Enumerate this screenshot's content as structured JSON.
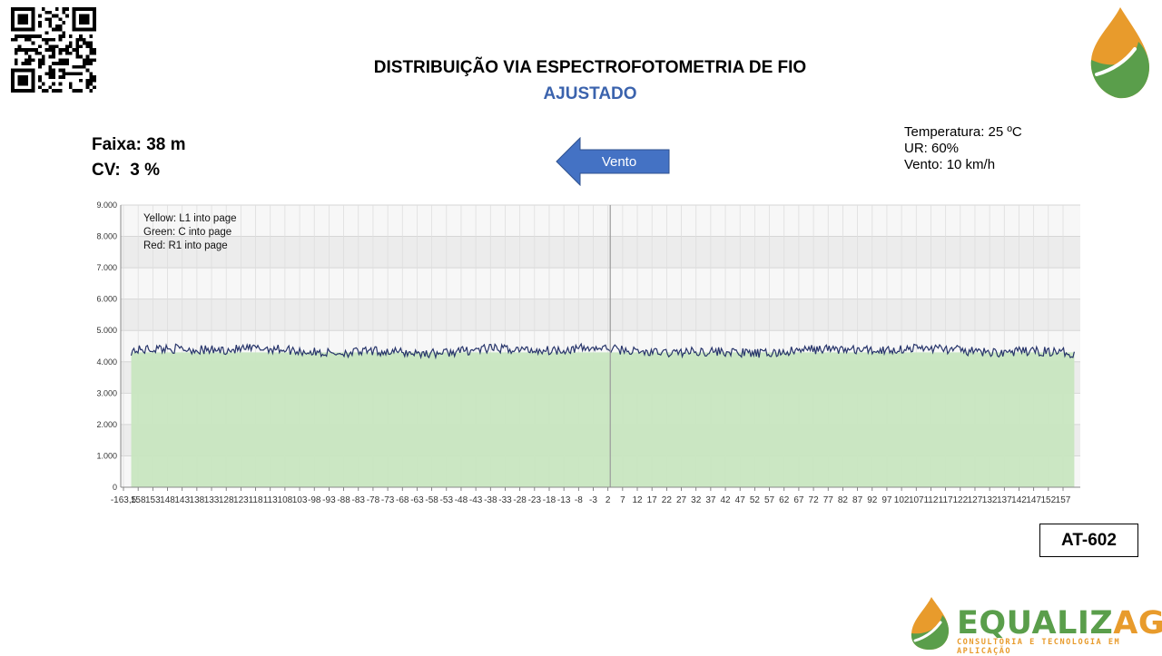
{
  "header": {
    "title": "DISTRIBUIÇÃO VIA ESPECTROFOTOMETRIA DE FIO",
    "subtitle": "AJUSTADO"
  },
  "stats": {
    "faixa": "Faixa: 38 m",
    "cv": "CV:  3 %"
  },
  "wind_arrow": {
    "label": "Vento",
    "direction": "left",
    "color": "#4472c4"
  },
  "conditions": {
    "temperature": "Temperatura: 25 ºC",
    "humidity": "UR: 60%",
    "wind": "Vento: 10 km/h"
  },
  "chart_data": {
    "type": "area",
    "title": "",
    "xlabel": "",
    "ylabel": "",
    "xlim": [
      -163.5,
      157
    ],
    "ylim": [
      0,
      9000
    ],
    "y_ticks": [
      "0",
      "1.000",
      "2.000",
      "3.000",
      "4.000",
      "5.000",
      "6.000",
      "7.000",
      "8.000",
      "9.000"
    ],
    "x_tick_labels": [
      "-163,5",
      "158",
      "153",
      "148",
      "143",
      "138",
      "133",
      "128",
      "123",
      "118",
      "113",
      "108",
      "103",
      "-98",
      "-93",
      "-88",
      "-83",
      "-78",
      "-73",
      "-68",
      "-63",
      "-58",
      "-53",
      "-48",
      "-43",
      "-38",
      "-33",
      "-28",
      "-23",
      "-18",
      "-13",
      "-8",
      "-3",
      "2",
      "7",
      "12",
      "17",
      "22",
      "27",
      "32",
      "37",
      "42",
      "47",
      "52",
      "57",
      "62",
      "67",
      "72",
      "77",
      "82",
      "87",
      "92",
      "97",
      "102",
      "107",
      "112",
      "117",
      "122",
      "127",
      "132",
      "137",
      "142",
      "147",
      "152",
      "157"
    ],
    "legend_text": [
      "Yellow: L1 into page",
      "Green: C into page",
      "Red: R1 into page"
    ],
    "legend_position": "top-left",
    "grid": true,
    "center_line_x": 0,
    "series": [
      {
        "name": "C",
        "color": "#c8e6c0",
        "values": [
          4300,
          4300
        ]
      },
      {
        "name": "",
        "color": "#27356a",
        "mean": 4350,
        "noise": 150
      }
    ],
    "x_range_series": [
      -160,
      155
    ]
  },
  "code_box": "AT-602",
  "brand": {
    "name_part1": "EQUALIZ",
    "name_part2": "AGRO",
    "tagline": "CONSULTORIA E TECNOLOGIA EM APLICAÇÃO",
    "green": "#5a9e4b",
    "orange": "#e89b2c"
  }
}
